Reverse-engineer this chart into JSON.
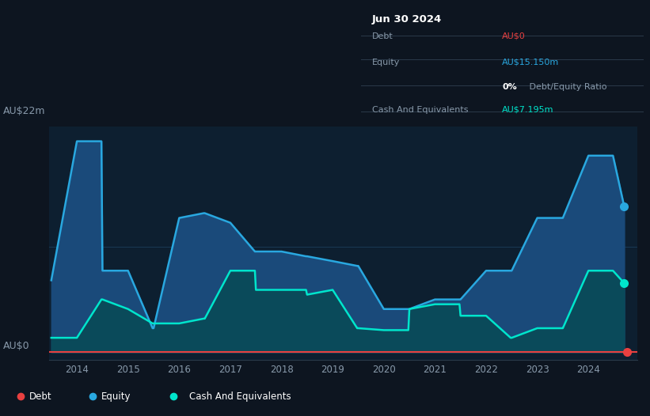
{
  "bg_color": "#0d1520",
  "plot_bg": "#0d1f30",
  "info_title": "Jun 30 2024",
  "ylabel_top": "AU$22m",
  "ylabel_bottom": "AU$0",
  "xtick_labels": [
    "2014",
    "2015",
    "2016",
    "2017",
    "2018",
    "2019",
    "2020",
    "2021",
    "2022",
    "2023",
    "2024"
  ],
  "equity_color": "#29a8e0",
  "equity_fill": "#1a4a7a",
  "cash_color": "#00e5cc",
  "cash_fill": "#0a4a5a",
  "debt_color": "#e84040",
  "grid_color": "#1a3a55",
  "separator_color": "#2a3a4a",
  "text_dim": "#8899aa",
  "equity_x": [
    2013.5,
    2014.0,
    2014.48,
    2014.5,
    2015.0,
    2015.48,
    2015.5,
    2016.0,
    2016.48,
    2016.5,
    2017.0,
    2017.48,
    2017.5,
    2018.0,
    2018.48,
    2018.5,
    2019.0,
    2019.48,
    2019.5,
    2020.0,
    2020.48,
    2020.5,
    2021.0,
    2021.48,
    2021.5,
    2022.0,
    2022.48,
    2022.5,
    2023.0,
    2023.48,
    2023.5,
    2024.0,
    2024.48,
    2024.7
  ],
  "equity_y": [
    7.5,
    22.0,
    22.0,
    8.5,
    8.5,
    2.5,
    2.5,
    14.0,
    14.5,
    14.5,
    13.5,
    10.5,
    10.5,
    10.5,
    10.0,
    10.0,
    9.5,
    9.0,
    9.0,
    4.5,
    4.5,
    4.5,
    5.5,
    5.5,
    5.5,
    8.5,
    8.5,
    8.5,
    14.0,
    14.0,
    14.0,
    20.5,
    20.5,
    15.2
  ],
  "cash_x": [
    2013.5,
    2014.0,
    2014.48,
    2014.5,
    2015.0,
    2015.48,
    2015.5,
    2016.0,
    2016.48,
    2016.5,
    2017.0,
    2017.48,
    2017.5,
    2018.0,
    2018.48,
    2018.5,
    2019.0,
    2019.48,
    2019.5,
    2020.0,
    2020.48,
    2020.5,
    2021.0,
    2021.48,
    2021.5,
    2022.0,
    2022.48,
    2022.5,
    2023.0,
    2023.48,
    2023.5,
    2024.0,
    2024.48,
    2024.7
  ],
  "cash_y": [
    1.5,
    1.5,
    5.5,
    5.5,
    4.5,
    3.0,
    3.0,
    3.0,
    3.5,
    3.5,
    8.5,
    8.5,
    6.5,
    6.5,
    6.5,
    6.0,
    6.5,
    2.5,
    2.5,
    2.3,
    2.3,
    4.5,
    5.0,
    5.0,
    3.8,
    3.8,
    1.5,
    1.5,
    2.5,
    2.5,
    2.5,
    8.5,
    8.5,
    7.2
  ],
  "ymax": 23.5,
  "ymin": -0.8,
  "xmin": 2013.45,
  "xmax": 2024.95,
  "debt_dot_x": 2024.75,
  "equity_dot_x": 2024.7,
  "cash_dot_x": 2024.7,
  "equity_dot_y": 15.2,
  "cash_dot_y": 7.2
}
